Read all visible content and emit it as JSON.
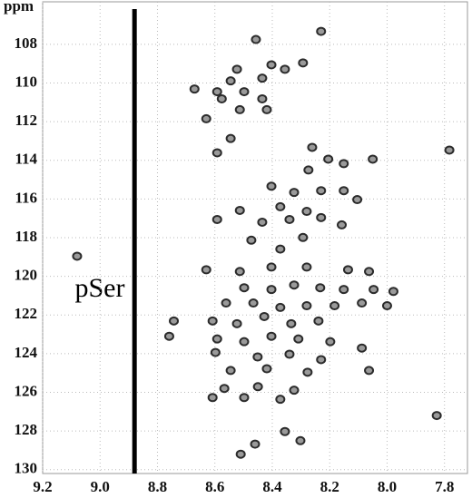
{
  "chart_data": {
    "type": "scatter",
    "y_label": "ppm",
    "annotation": "pSer",
    "divider_x": 8.88,
    "color": "#2b2b2b",
    "grid": true,
    "xlim": [
      9.2,
      7.72
    ],
    "ylim": [
      105.8,
      130.2
    ],
    "xticks": [
      9.2,
      {
        "value": 9,
        "label": "9.0"
      },
      8.8,
      8.6,
      8.4,
      8.2,
      {
        "value": 8,
        "label": "8.0"
      },
      7.8
    ],
    "yticks": [
      108,
      110,
      112,
      114,
      116,
      118,
      120,
      122,
      124,
      126,
      128,
      130
    ],
    "x": [
      8.457,
      8.23,
      8.293,
      8.403,
      8.356,
      8.523,
      8.545,
      8.435,
      8.671,
      8.592,
      8.498,
      8.576,
      8.435,
      8.513,
      8.419,
      8.63,
      8.545,
      8.592,
      8.261,
      8.05,
      7.783,
      8.205,
      8.151,
      8.274,
      8.403,
      8.324,
      8.23,
      8.151,
      8.104,
      8.592,
      8.513,
      8.372,
      8.28,
      8.23,
      8.158,
      8.435,
      8.34,
      8.473,
      8.372,
      8.293,
      9.08,
      8.63,
      8.513,
      8.403,
      8.28,
      8.136,
      8.063,
      8.498,
      8.403,
      8.324,
      8.233,
      8.151,
      8.047,
      7.978,
      8.561,
      8.466,
      8.372,
      8.28,
      8.183,
      8.088,
      8.0,
      8.608,
      8.523,
      8.428,
      8.334,
      8.239,
      8.743,
      8.759,
      8.592,
      8.498,
      8.403,
      8.309,
      8.198,
      8.088,
      8.598,
      8.451,
      8.34,
      8.23,
      8.545,
      8.419,
      8.277,
      8.063,
      8.567,
      8.45,
      8.324,
      8.608,
      8.498,
      8.372,
      7.827,
      8.356,
      8.46,
      8.302,
      8.51
    ],
    "values": [
      107.75,
      107.33,
      108.96,
      109.06,
      109.29,
      109.29,
      109.89,
      109.75,
      110.31,
      110.45,
      110.45,
      110.82,
      110.82,
      111.38,
      111.38,
      111.85,
      112.87,
      113.61,
      113.33,
      113.94,
      113.47,
      113.94,
      114.17,
      114.5,
      115.34,
      115.66,
      115.57,
      115.57,
      116.03,
      117.06,
      116.59,
      116.4,
      116.64,
      116.96,
      117.34,
      117.2,
      117.06,
      118.13,
      118.59,
      117.99,
      118.96,
      119.66,
      119.75,
      119.52,
      119.52,
      119.66,
      119.75,
      120.59,
      120.68,
      120.45,
      120.59,
      120.68,
      120.68,
      120.78,
      121.38,
      121.38,
      121.61,
      121.52,
      121.52,
      121.38,
      121.52,
      122.31,
      122.45,
      122.08,
      122.45,
      122.31,
      122.31,
      123.1,
      123.24,
      123.38,
      123.1,
      123.24,
      123.38,
      123.71,
      123.94,
      124.17,
      124.03,
      124.31,
      124.87,
      124.78,
      124.96,
      124.87,
      125.8,
      125.71,
      125.89,
      126.27,
      126.27,
      126.36,
      127.2,
      128.03,
      128.68,
      128.5,
      129.2
    ]
  }
}
